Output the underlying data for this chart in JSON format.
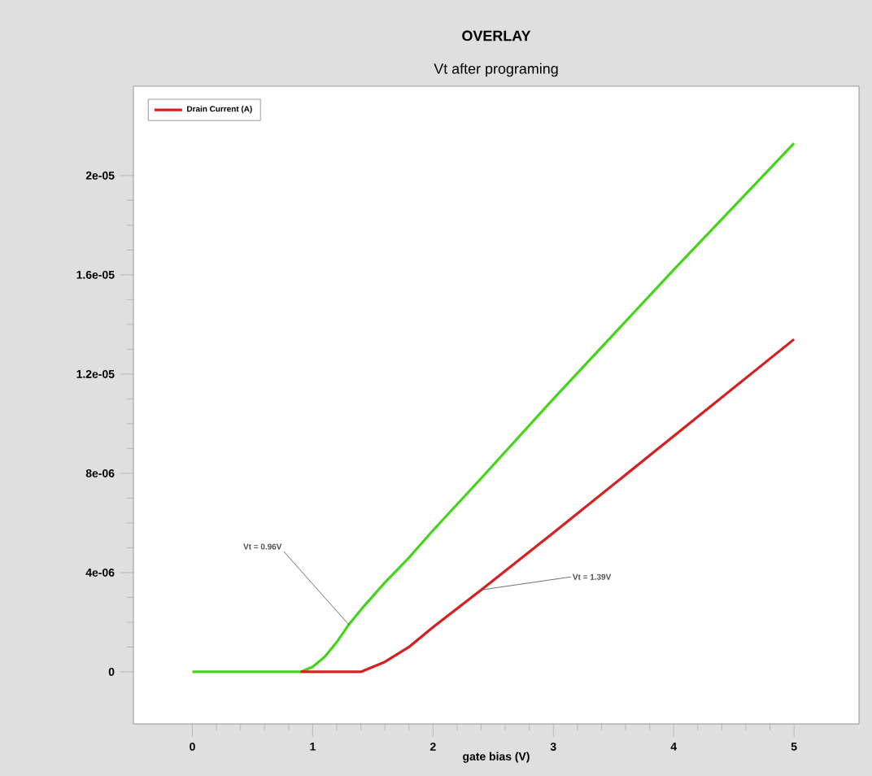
{
  "chart_data": {
    "type": "line",
    "title": "OVERLAY",
    "subtitle": "Vt after programing",
    "xlabel": "gate bias (V)",
    "x": [
      0,
      0.2,
      0.4,
      0.6,
      0.8,
      0.9,
      1.0,
      1.1,
      1.2,
      1.3,
      1.4,
      1.6,
      1.8,
      2.0,
      2.4,
      3.0,
      4.0,
      5.0
    ],
    "series": [
      {
        "name": "Drain Current (A)",
        "color": "#d42020",
        "values": [
          null,
          null,
          null,
          null,
          null,
          0,
          0,
          0,
          0,
          0,
          0,
          4e-07,
          1e-06,
          1.8e-06,
          3.3e-06,
          5.6e-06,
          9.5e-06,
          1.34e-05
        ]
      },
      {
        "color": "#44d41c",
        "values": [
          0,
          0,
          0,
          0,
          0,
          0,
          2e-07,
          6e-07,
          1.2e-06,
          1.9e-06,
          2.5e-06,
          3.6e-06,
          4.6e-06,
          5.7e-06,
          7.8e-06,
          1.1e-05,
          1.62e-05,
          2.13e-05
        ]
      }
    ],
    "xlim": [
      -0.49,
      5.54
    ],
    "ylim": [
      -2.1e-06,
      2.36e-05
    ],
    "xticks": [
      0,
      1,
      2,
      3,
      4,
      5
    ],
    "yticks": [
      {
        "value": 0,
        "label": "0"
      },
      {
        "value": 4e-06,
        "label": "4e-06"
      },
      {
        "value": 8e-06,
        "label": "8e-06"
      },
      {
        "value": 1.2e-05,
        "label": "1.2e-05"
      },
      {
        "value": 1.6e-05,
        "label": "1.6e-05"
      },
      {
        "value": 2e-05,
        "label": "2e-05"
      }
    ],
    "annotations": [
      {
        "text": "Vt = 0.96V",
        "x": 1.3,
        "y": 1.9e-06
      },
      {
        "text": "Vt = 1.39V",
        "x": 2.4,
        "y": 3.3e-06
      }
    ],
    "legend": "top left",
    "marker": "none",
    "line_style": "solid",
    "grid": false
  }
}
